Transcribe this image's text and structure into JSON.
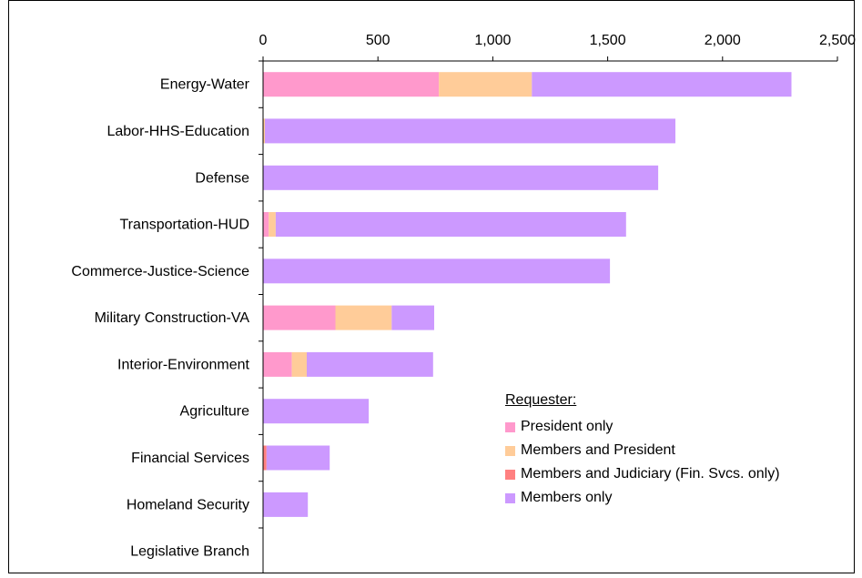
{
  "chart_data": {
    "type": "bar",
    "orientation": "horizontal",
    "stacked": true,
    "categories": [
      "Energy-Water",
      "Labor-HHS-Education",
      "Defense",
      "Transportation-HUD",
      "Commerce-Justice-Science",
      "Military Construction-VA",
      "Interior-Environment",
      "Agriculture",
      "Financial Services",
      "Homeland Security",
      "Legislative Branch"
    ],
    "series": [
      {
        "name": "President only",
        "color": "#ff99cc",
        "values": [
          765,
          0,
          0,
          25,
          0,
          315,
          125,
          0,
          0,
          0,
          0
        ]
      },
      {
        "name": "Members and President",
        "color": "#ffcc99",
        "values": [
          405,
          8,
          0,
          30,
          0,
          245,
          65,
          0,
          0,
          0,
          0
        ]
      },
      {
        "name": "Members and Judiciary (Fin. Svcs. only)",
        "color": "#ff8080",
        "values": [
          0,
          0,
          0,
          0,
          0,
          0,
          0,
          0,
          15,
          0,
          0
        ]
      },
      {
        "name": "Members only",
        "color": "#cc99ff",
        "values": [
          1130,
          1787,
          1720,
          1525,
          1510,
          185,
          550,
          460,
          275,
          195,
          0
        ]
      }
    ],
    "xlim": [
      0,
      2500
    ],
    "xticks": [
      0,
      500,
      1000,
      1500,
      2000,
      2500
    ],
    "xtick_labels": [
      "0",
      "500",
      "1,000",
      "1,500",
      "2,000",
      "2,500"
    ],
    "x_axis_position": "top",
    "grid": false,
    "legend_title": "Requester:",
    "legend_position": "bottom-right"
  }
}
